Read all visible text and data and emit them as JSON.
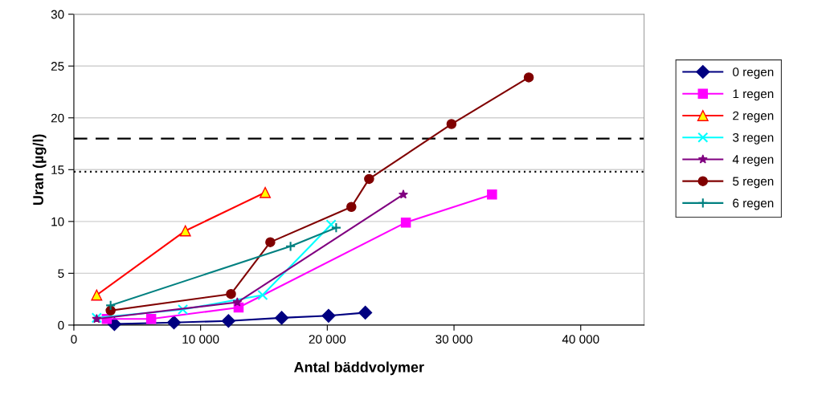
{
  "chart_data": {
    "type": "line",
    "xlabel": "Antal bäddvolymer",
    "ylabel": "Uran (µg/l)",
    "xlim": [
      0,
      45000
    ],
    "xticks": [
      0,
      {
        "value": 10000,
        "label": "10 000"
      },
      {
        "value": 20000,
        "label": "20 000"
      },
      {
        "value": 30000,
        "label": "30 000"
      },
      {
        "value": 40000,
        "label": "40 000"
      }
    ],
    "ylim": [
      0,
      30
    ],
    "yticks": [
      0,
      5,
      10,
      15,
      20,
      25,
      30
    ],
    "grid": "y",
    "legend": "right",
    "series": [
      {
        "name": "0 regen",
        "color": "#000080",
        "marker": "diamond",
        "x": [
          3200,
          7900,
          12200,
          16400,
          20100,
          23000
        ],
        "values": [
          0.1,
          0.25,
          0.4,
          0.7,
          0.9,
          1.2
        ]
      },
      {
        "name": "1 regen",
        "color": "#ff00ff",
        "marker": "square",
        "x": [
          2600,
          6100,
          13000,
          26200,
          33000
        ],
        "values": [
          0.6,
          0.6,
          1.7,
          9.9,
          12.6
        ]
      },
      {
        "name": "2 regen",
        "color": "#ff0000",
        "marker": "triangle",
        "x": [
          1800,
          8800,
          15100
        ],
        "values": [
          2.9,
          9.1,
          12.8
        ]
      },
      {
        "name": "3 regen",
        "color": "#00ffff",
        "marker": "cross",
        "x": [
          1800,
          8600,
          14900,
          20300
        ],
        "values": [
          0.7,
          1.5,
          2.9,
          9.7
        ]
      },
      {
        "name": "4 regen",
        "color": "#800080",
        "marker": "star",
        "x": [
          1800,
          12900,
          26000
        ],
        "values": [
          0.6,
          2.2,
          12.6
        ]
      },
      {
        "name": "5 regen",
        "color": "#800000",
        "marker": "circle",
        "x": [
          2900,
          12400,
          15500,
          21900,
          23300,
          29800,
          35900
        ],
        "values": [
          1.4,
          3.0,
          8.0,
          11.4,
          14.1,
          19.4,
          23.9
        ]
      },
      {
        "name": "6 regen",
        "color": "#008080",
        "marker": "plus",
        "x": [
          2900,
          17100,
          20700
        ],
        "values": [
          1.9,
          7.6,
          9.4
        ]
      }
    ],
    "ref_lines": [
      {
        "axis": "y",
        "value": 18,
        "color": "#000000",
        "line_style": "dashed"
      },
      {
        "axis": "y",
        "value": 14.8,
        "color": "#000000",
        "line_style": "dotted"
      }
    ]
  }
}
